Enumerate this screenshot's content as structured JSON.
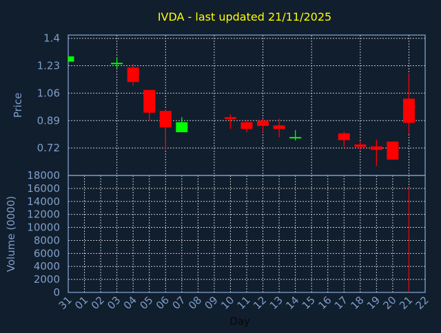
{
  "colors": {
    "background": "#111e2e",
    "axis": "#8aaad8",
    "label": "#7f9fc8",
    "title": "#ffff00",
    "up": "#00ff00",
    "down": "#ff0000",
    "grid": "#c8c8c8",
    "xlabel": "#080808"
  },
  "chart_data": [
    {
      "type": "candlestick",
      "title": "IVDA - last updated 21/11/2025",
      "ylabel": "Price",
      "xlabel": "Day",
      "ylim": [
        0.55,
        1.42
      ],
      "yticks": [
        "1.4",
        "1.23",
        "1.06",
        "0.89",
        "0.72"
      ],
      "ytick_values": [
        1.4,
        1.23,
        1.06,
        0.89,
        0.72
      ],
      "xticks": [
        "31",
        "01",
        "02",
        "03",
        "04",
        "05",
        "06",
        "07",
        "08",
        "09",
        "10",
        "11",
        "12",
        "13",
        "14",
        "15",
        "16",
        "17",
        "18",
        "19",
        "20",
        "21",
        "22"
      ],
      "grid": true,
      "candles": [
        {
          "day": "31",
          "open": 1.255,
          "high": 1.288,
          "low": 1.255,
          "close": 1.288
        },
        {
          "day": "03",
          "open": 1.246,
          "high": 1.279,
          "low": 1.216,
          "close": 1.248
        },
        {
          "day": "04",
          "open": 1.219,
          "high": 1.241,
          "low": 1.107,
          "close": 1.129
        },
        {
          "day": "05",
          "open": 1.08,
          "high": 1.08,
          "low": 0.889,
          "close": 0.939
        },
        {
          "day": "06",
          "open": 0.95,
          "high": 0.959,
          "low": 0.708,
          "close": 0.848
        },
        {
          "day": "07",
          "open": 0.818,
          "high": 0.911,
          "low": 0.818,
          "close": 0.88
        },
        {
          "day": "10",
          "open": 0.911,
          "high": 0.929,
          "low": 0.838,
          "close": 0.9
        },
        {
          "day": "11",
          "open": 0.88,
          "high": 0.891,
          "low": 0.818,
          "close": 0.838
        },
        {
          "day": "12",
          "open": 0.89,
          "high": 0.902,
          "low": 0.817,
          "close": 0.857
        },
        {
          "day": "13",
          "open": 0.86,
          "high": 0.902,
          "low": 0.787,
          "close": 0.838
        },
        {
          "day": "14",
          "open": 0.786,
          "high": 0.831,
          "low": 0.767,
          "close": 0.788
        },
        {
          "day": "17",
          "open": 0.811,
          "high": 0.821,
          "low": 0.727,
          "close": 0.769
        },
        {
          "day": "18",
          "open": 0.742,
          "high": 0.76,
          "low": 0.706,
          "close": 0.727
        },
        {
          "day": "19",
          "open": 0.73,
          "high": 0.772,
          "low": 0.609,
          "close": 0.709
        },
        {
          "day": "20",
          "open": 0.76,
          "high": 0.76,
          "low": 0.648,
          "close": 0.648
        },
        {
          "day": "21",
          "open": 1.026,
          "high": 1.18,
          "low": 0.805,
          "close": 0.876
        }
      ]
    },
    {
      "type": "bar",
      "ylabel": "Volume (0000)",
      "xlabel": "Day",
      "ylim": [
        0,
        18000
      ],
      "yticks": [
        "0",
        "2000",
        "4000",
        "6000",
        "8000",
        "10000",
        "12000",
        "14000",
        "16000",
        "18000"
      ],
      "ytick_values": [
        0,
        2000,
        4000,
        6000,
        8000,
        10000,
        12000,
        14000,
        16000,
        18000
      ],
      "bars": [
        {
          "day": "21",
          "value": 16200,
          "direction": "down"
        }
      ]
    }
  ]
}
